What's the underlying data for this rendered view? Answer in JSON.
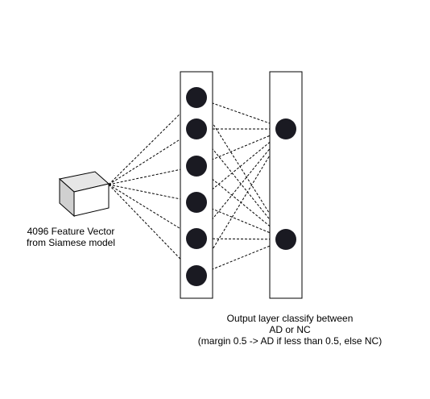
{
  "diagram": {
    "input_block": {
      "label_lines": [
        "4096 Feature Vector",
        "from Siamese model"
      ]
    },
    "hidden_layer": {
      "node_count": 6
    },
    "output_layer": {
      "node_count": 2,
      "label_lines": [
        "Output layer classify between",
        "AD or NC",
        "(margin 0.5 -> AD if less than 0.5, else NC)"
      ]
    },
    "colors": {
      "node_fill": "#1a1a22",
      "stroke": "#000000",
      "cube_front": "#ffffff",
      "cube_top": "#e6e6e6",
      "cube_side": "#d0d0d0"
    }
  }
}
